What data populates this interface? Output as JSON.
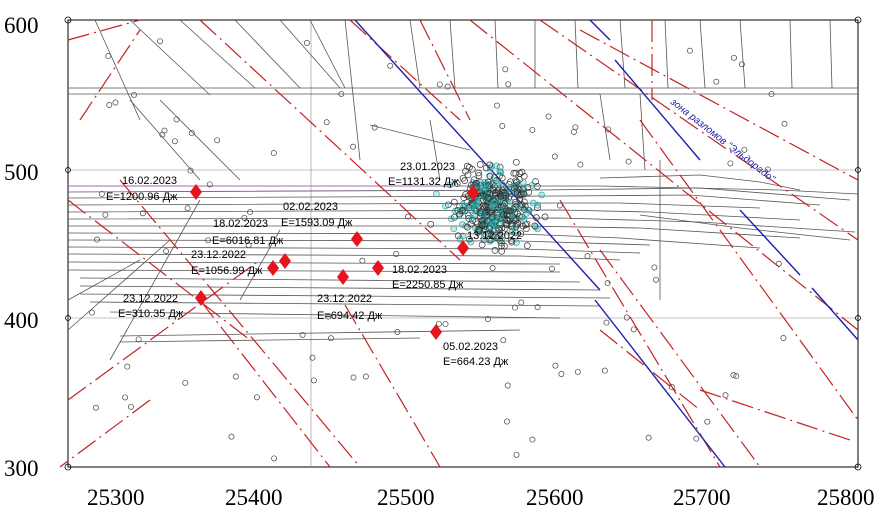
{
  "map": {
    "x_ticks": [
      "25300",
      "25400",
      "25500",
      "25600",
      "25700",
      "25800"
    ],
    "y_ticks": [
      "600",
      "500",
      "400",
      "300"
    ],
    "fault_zone_label": "зона разломов \"Эльдорадо\""
  },
  "events": [
    {
      "date": "16.02.2023",
      "energy": "E=1200.96 Дж"
    },
    {
      "date": "02.02.2023",
      "energy": "E=1593.09 Дж"
    },
    {
      "date": "18.02.2023",
      "energy": "E=6016.81 Дж"
    },
    {
      "date": "23.12.2022",
      "energy": "E=1056.99 Дж"
    },
    {
      "date": "23.12.2022",
      "energy": "E=310.35 Дж"
    },
    {
      "date": "23.12.2022",
      "energy": "E=694.42 Дж"
    },
    {
      "date": "18.02.2023",
      "energy": "E=2250.85 Дж"
    },
    {
      "date": "13.12.2022",
      "energy": ""
    },
    {
      "date": "23.01.2023",
      "energy": "E=1131.32 Дж"
    },
    {
      "date": "05.02.2023",
      "energy": "E=664.23 Дж"
    }
  ],
  "colors": {
    "marker": "#e8141c",
    "fault_red": "#c42222",
    "fault_blue": "#1f1fb0",
    "workings": "#444444",
    "grid": "#8a8a8a",
    "cluster": "#2aa9a9"
  }
}
